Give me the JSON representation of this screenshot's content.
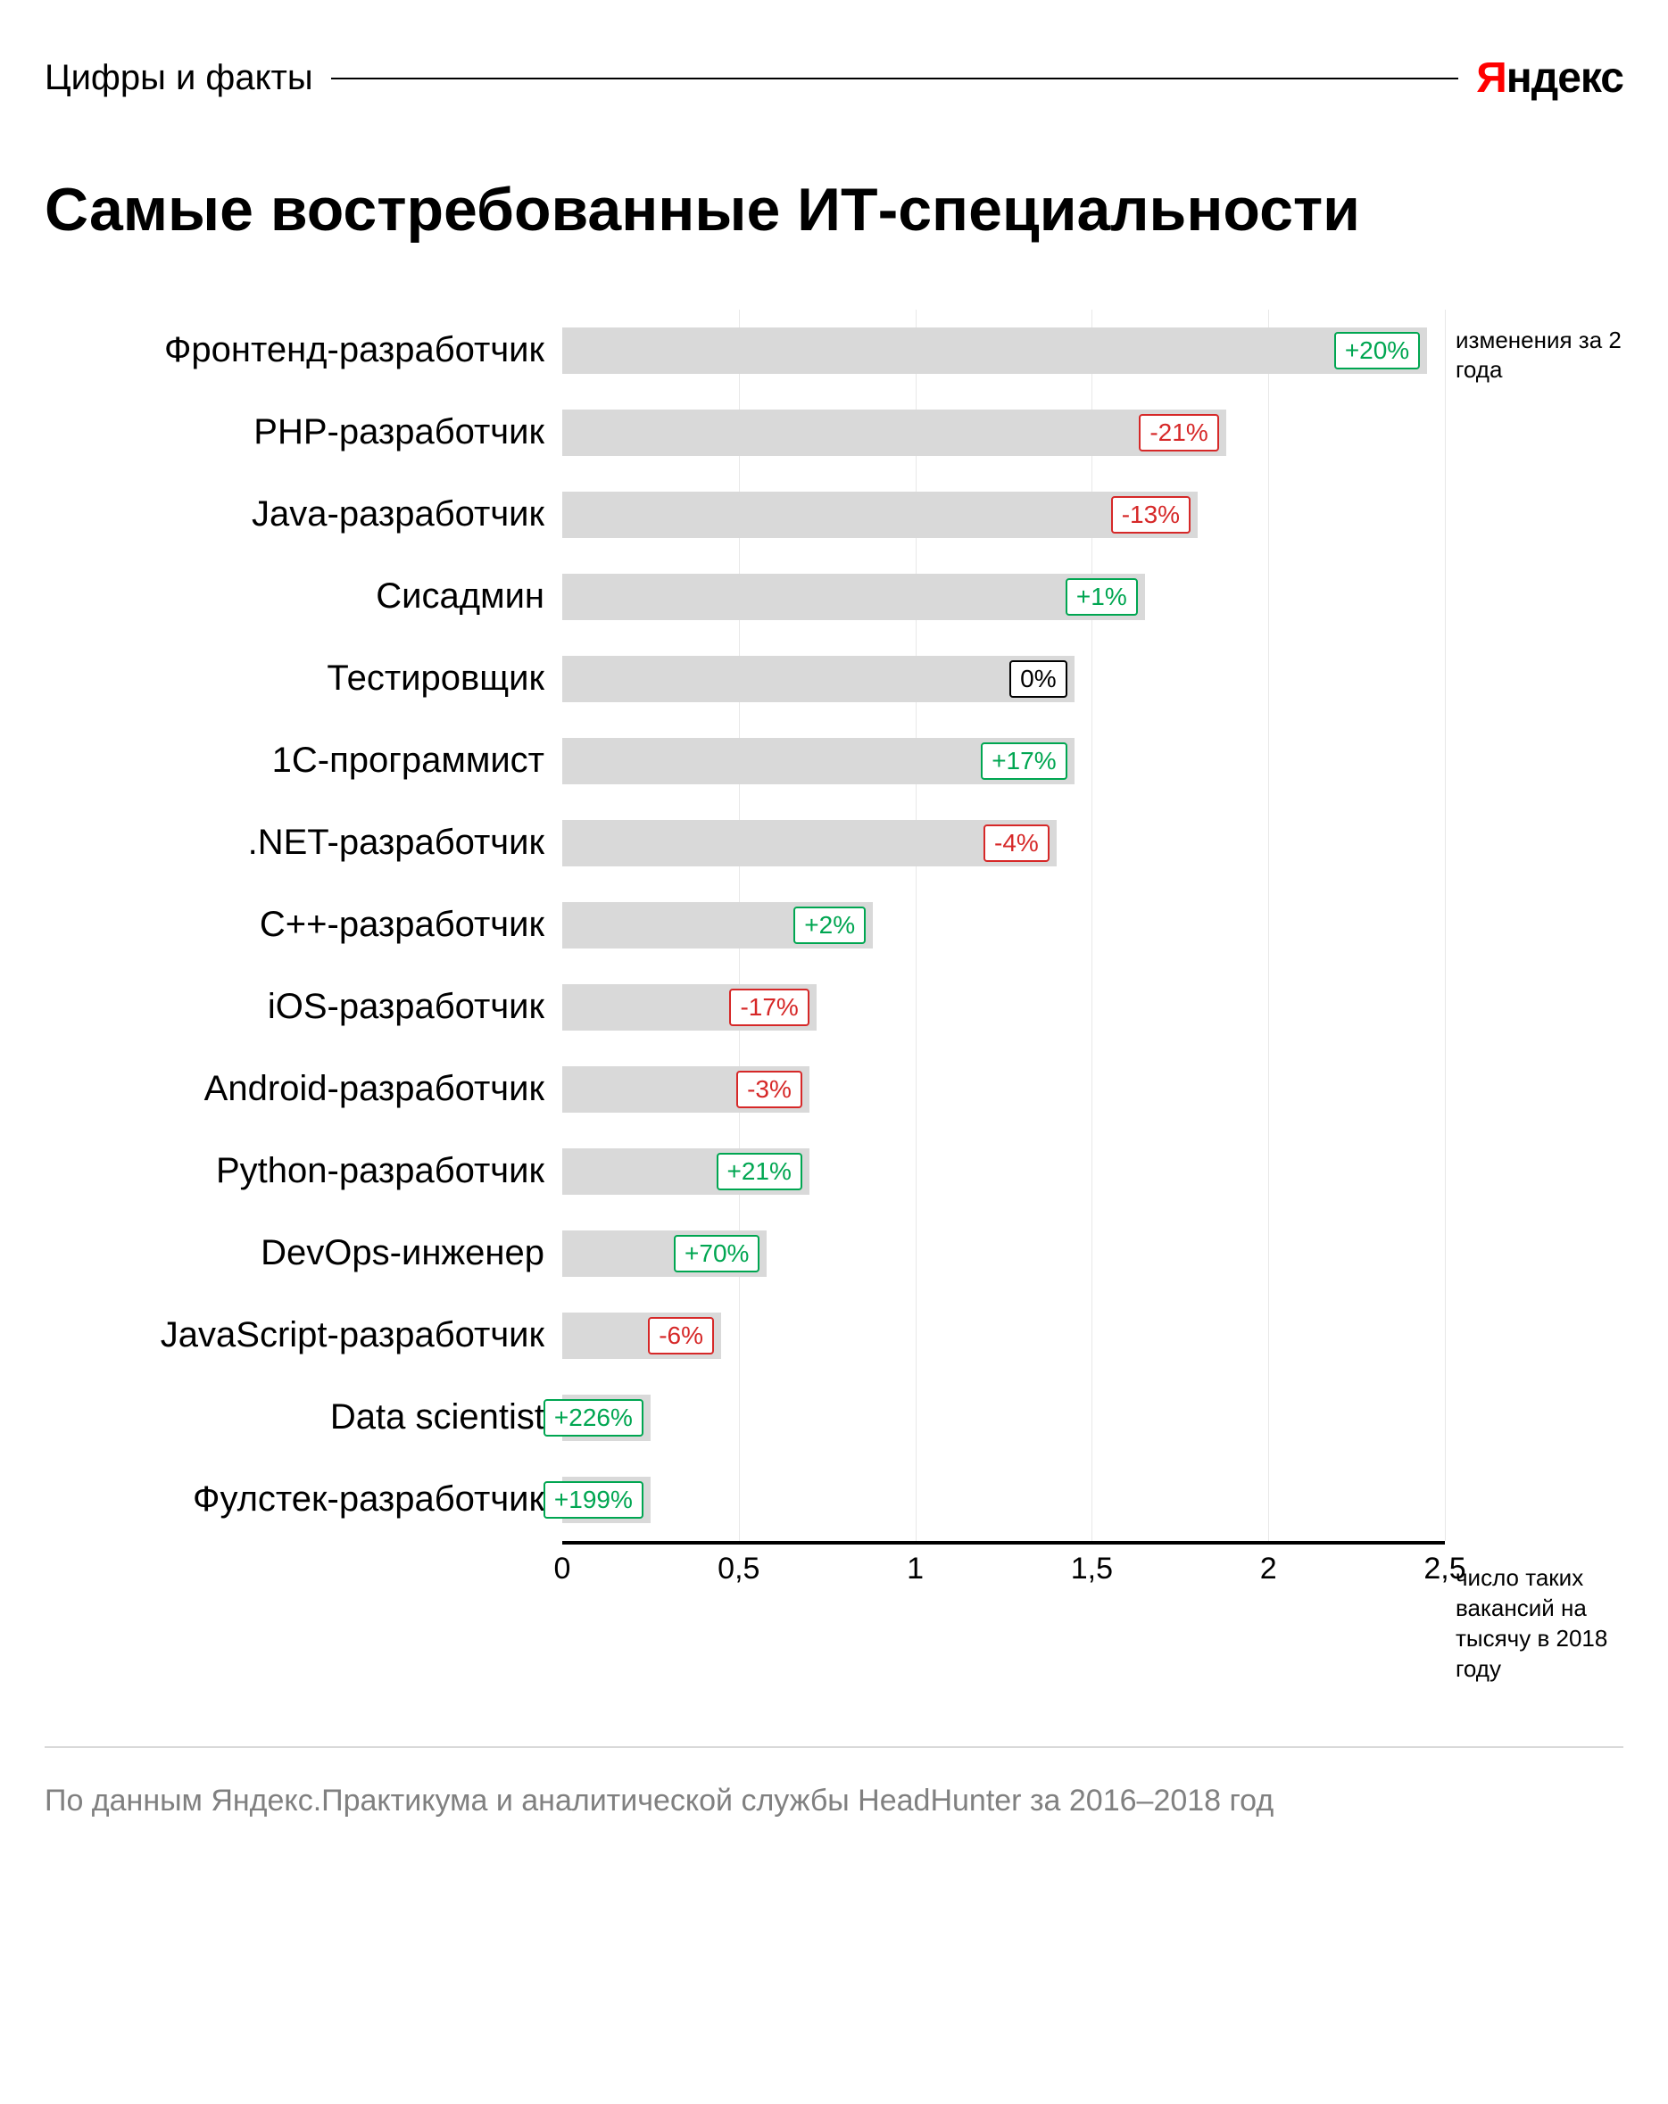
{
  "header": {
    "subtitle": "Цифры и факты",
    "logo_first": "Я",
    "logo_rest": "ндекс"
  },
  "title": "Самые востребованные ИТ-специальности",
  "chart": {
    "type": "bar",
    "xmax": 2.5,
    "bar_color": "#d9d9d9",
    "grid_color": "#e8e8e8",
    "axis_color": "#000000",
    "positive_color": "#00a651",
    "negative_color": "#d62828",
    "neutral_color": "#000000",
    "ticks": [
      {
        "pos": 0,
        "label": "0"
      },
      {
        "pos": 0.5,
        "label": "0,5"
      },
      {
        "pos": 1,
        "label": "1"
      },
      {
        "pos": 1.5,
        "label": "1,5"
      },
      {
        "pos": 2,
        "label": "2"
      },
      {
        "pos": 2.5,
        "label": "2,5"
      }
    ],
    "items": [
      {
        "label": "Фронтенд-разработчик",
        "value": 2.45,
        "change": "+20%",
        "dir": "pos"
      },
      {
        "label": "PHP-разработчик",
        "value": 1.88,
        "change": "-21%",
        "dir": "neg"
      },
      {
        "label": "Java-разработчик",
        "value": 1.8,
        "change": "-13%",
        "dir": "neg"
      },
      {
        "label": "Сисадмин",
        "value": 1.65,
        "change": "+1%",
        "dir": "pos"
      },
      {
        "label": "Тестировщик",
        "value": 1.45,
        "change": "0%",
        "dir": "neu"
      },
      {
        "label": "1С-программист",
        "value": 1.45,
        "change": "+17%",
        "dir": "pos"
      },
      {
        "label": ".NET-разработчик",
        "value": 1.4,
        "change": "-4%",
        "dir": "neg"
      },
      {
        "label": "С++-разработчик",
        "value": 0.88,
        "change": "+2%",
        "dir": "pos"
      },
      {
        "label": "iOS-разработчик",
        "value": 0.72,
        "change": "-17%",
        "dir": "neg"
      },
      {
        "label": "Android-разработчик",
        "value": 0.7,
        "change": "-3%",
        "dir": "neg"
      },
      {
        "label": "Python-разработчик",
        "value": 0.7,
        "change": "+21%",
        "dir": "pos"
      },
      {
        "label": "DevOps-инженер",
        "value": 0.58,
        "change": "+70%",
        "dir": "pos"
      },
      {
        "label": "JavaScript-разработчик",
        "value": 0.45,
        "change": "-6%",
        "dir": "neg"
      },
      {
        "label": "Data scientist",
        "value": 0.25,
        "change": "+226%",
        "dir": "pos"
      },
      {
        "label": "Фулстек-разработчик",
        "value": 0.25,
        "change": "+199%",
        "dir": "pos"
      }
    ],
    "side_note_top": "изменения за 2 года",
    "side_note_bottom": "число таких вакансий на тысячу в 2018 году"
  },
  "source": "По данным Яндекс.Практикума и аналитической службы HeadHunter за 2016–2018 год"
}
